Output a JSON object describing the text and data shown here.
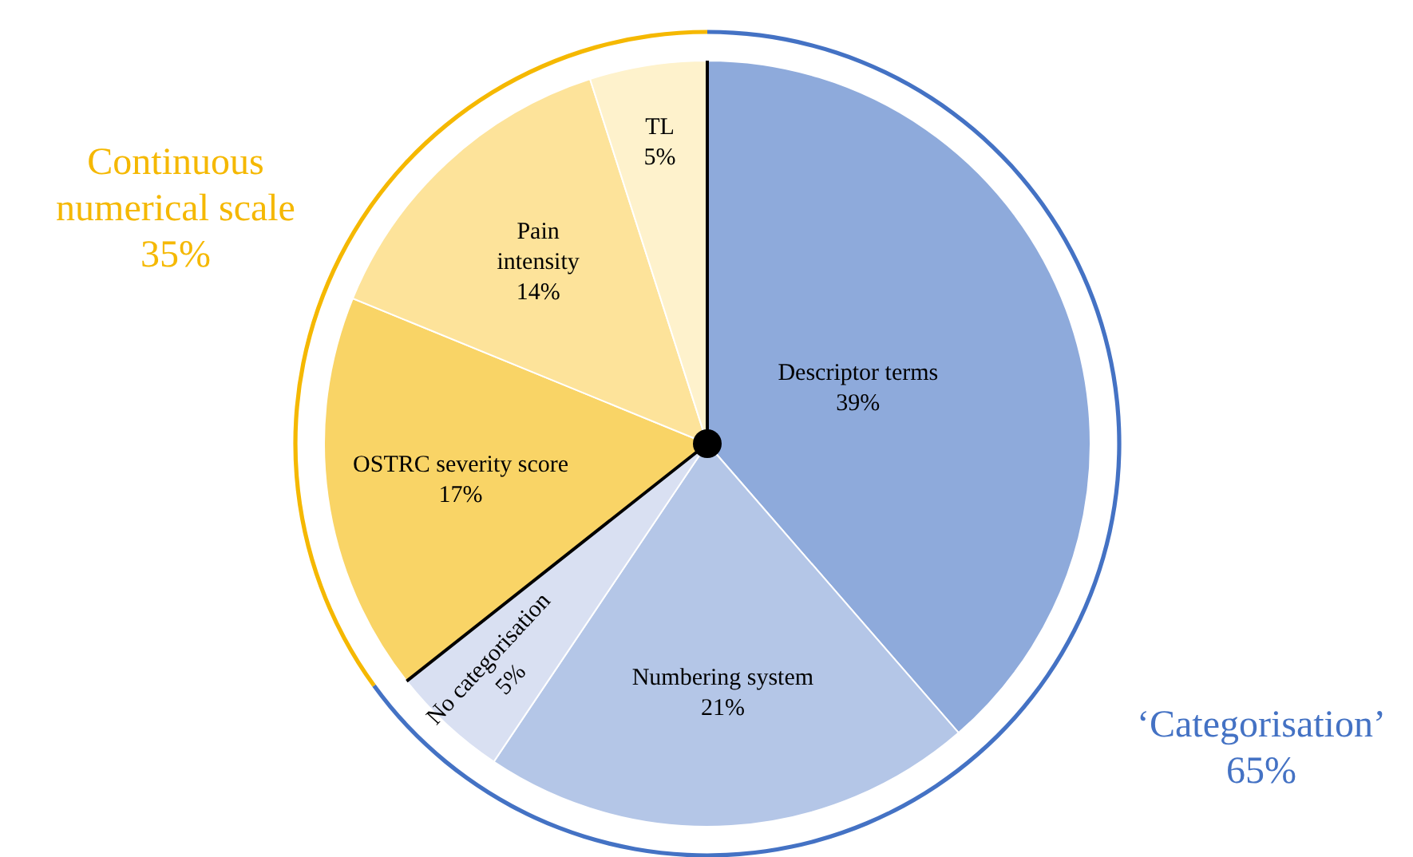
{
  "chart_data": [
    {
      "type": "pie",
      "categories": [
        "Descriptor terms",
        "Numbering system",
        "No categorisation",
        "OSTRC severity score",
        "Pain intensity",
        "TL"
      ],
      "values": [
        39,
        21,
        5,
        17,
        14,
        5
      ],
      "colors": [
        "#8eaadb",
        "#b4c6e7",
        "#d9e0f2",
        "#f9d466",
        "#fde39a",
        "#fef2cc"
      ],
      "value_labels": [
        "39%",
        "21%",
        "5%",
        "17%",
        "14%",
        "5%"
      ]
    },
    {
      "type": "donut",
      "categories": [
        "‘Categorisation’",
        "Continuous numerical scale"
      ],
      "values": [
        65,
        35
      ],
      "colors": [
        "#4472c4",
        "#f5b800"
      ],
      "value_labels": [
        "65%",
        "35%"
      ]
    }
  ]
}
